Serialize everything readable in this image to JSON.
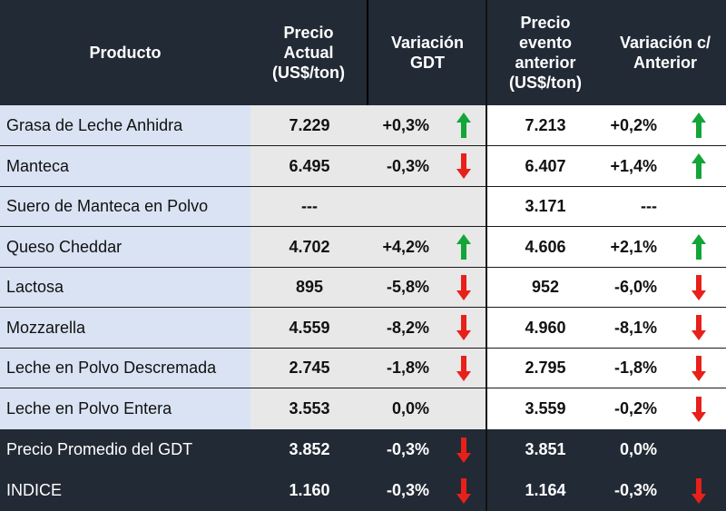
{
  "header": {
    "product": "Producto",
    "price_now": [
      "Precio",
      "Actual",
      "(US$/ton)"
    ],
    "var_gdt": [
      "Variación",
      "GDT"
    ],
    "price_prev": [
      "Precio",
      "evento",
      "anterior",
      "(US$/ton)"
    ],
    "var_prev": [
      "Variación c/",
      "Anterior"
    ]
  },
  "colors": {
    "up": "#13a538",
    "down": "#e8201a",
    "header_bg": "#222a35",
    "product_bg": "#dae3f3",
    "price_bg": "#e8e8e8"
  },
  "rows": [
    {
      "product": "Grasa de Leche Anhidra",
      "price": "7.229",
      "var": "+0,3%",
      "dir": "up",
      "prev": "7.213",
      "var2": "+0,2%",
      "dir2": "up"
    },
    {
      "product": "Manteca",
      "price": "6.495",
      "var": "-0,3%",
      "dir": "down",
      "prev": "6.407",
      "var2": "+1,4%",
      "dir2": "up"
    },
    {
      "product": "Suero de Manteca en Polvo",
      "price": "---",
      "var": "",
      "dir": "",
      "prev": "3.171",
      "var2": "---",
      "dir2": ""
    },
    {
      "product": "Queso Cheddar",
      "price": "4.702",
      "var": "+4,2%",
      "dir": "up",
      "prev": "4.606",
      "var2": "+2,1%",
      "dir2": "up"
    },
    {
      "product": "Lactosa",
      "price": "895",
      "var": "-5,8%",
      "dir": "down",
      "prev": "952",
      "var2": "-6,0%",
      "dir2": "down"
    },
    {
      "product": "Mozzarella",
      "price": "4.559",
      "var": "-8,2%",
      "dir": "down",
      "prev": "4.960",
      "var2": "-8,1%",
      "dir2": "down"
    },
    {
      "product": "Leche en Polvo Descremada",
      "price": "2.745",
      "var": "-1,8%",
      "dir": "down",
      "prev": "2.795",
      "var2": "-1,8%",
      "dir2": "down"
    },
    {
      "product": "Leche en Polvo Entera",
      "price": "3.553",
      "var": "0,0%",
      "dir": "",
      "prev": "3.559",
      "var2": "-0,2%",
      "dir2": "down"
    }
  ],
  "footer": [
    {
      "product": "Precio Promedio del GDT",
      "price": "3.852",
      "var": "-0,3%",
      "dir": "down",
      "prev": "3.851",
      "var2": "0,0%",
      "dir2": ""
    },
    {
      "product": "INDICE",
      "price": "1.160",
      "var": "-0,3%",
      "dir": "down",
      "prev": "1.164",
      "var2": "-0,3%",
      "dir2": "down"
    }
  ]
}
